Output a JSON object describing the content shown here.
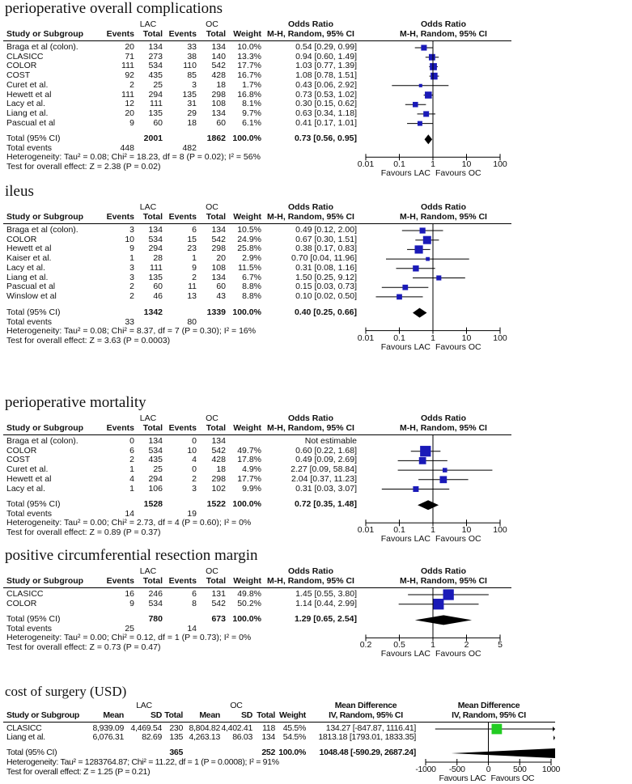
{
  "sections": [
    {
      "title": "perioperative overall complications",
      "measure": "Odds Ratio",
      "method": "M-H, Random, 95% CI",
      "scale": "log",
      "ticks": [
        "0.01",
        "0.1",
        "1",
        "10",
        "100"
      ],
      "favours": [
        "Favours LAC",
        "Favours OC"
      ],
      "cols": [
        "Study or Subgroup",
        "Events",
        "Total",
        "Events",
        "Total",
        "Weight"
      ],
      "groups": [
        "LAC",
        "OC"
      ],
      "studies": [
        {
          "name": "Braga et al (colon).",
          "e1": "20",
          "t1": "134",
          "e2": "33",
          "t2": "134",
          "w": "10.0%",
          "est": "0.54 [0.29, 0.99]",
          "v": [
            0.54,
            0.29,
            0.99
          ],
          "wv": 10.0
        },
        {
          "name": "CLASICC",
          "e1": "71",
          "t1": "273",
          "e2": "38",
          "t2": "140",
          "w": "13.3%",
          "est": "0.94 [0.60, 1.49]",
          "v": [
            0.94,
            0.6,
            1.49
          ],
          "wv": 13.3
        },
        {
          "name": "COLOR",
          "e1": "111",
          "t1": "534",
          "e2": "110",
          "t2": "542",
          "w": "17.7%",
          "est": "1.03 [0.77, 1.39]",
          "v": [
            1.03,
            0.77,
            1.39
          ],
          "wv": 17.7
        },
        {
          "name": "COST",
          "e1": "92",
          "t1": "435",
          "e2": "85",
          "t2": "428",
          "w": "16.7%",
          "est": "1.08 [0.78, 1.51]",
          "v": [
            1.08,
            0.78,
            1.51
          ],
          "wv": 16.7
        },
        {
          "name": "Curet et al.",
          "e1": "2",
          "t1": "25",
          "e2": "3",
          "t2": "18",
          "w": "1.7%",
          "est": "0.43 [0.06, 2.92]",
          "v": [
            0.43,
            0.06,
            2.92
          ],
          "wv": 1.7
        },
        {
          "name": "Hewett et al",
          "e1": "111",
          "t1": "294",
          "e2": "135",
          "t2": "298",
          "w": "16.8%",
          "est": "0.73 [0.53, 1.02]",
          "v": [
            0.73,
            0.53,
            1.02
          ],
          "wv": 16.8
        },
        {
          "name": "Lacy et al.",
          "e1": "12",
          "t1": "111",
          "e2": "31",
          "t2": "108",
          "w": "8.1%",
          "est": "0.30 [0.15, 0.62]",
          "v": [
            0.3,
            0.15,
            0.62
          ],
          "wv": 8.1
        },
        {
          "name": "Liang et al.",
          "e1": "20",
          "t1": "135",
          "e2": "29",
          "t2": "134",
          "w": "9.7%",
          "est": "0.63 [0.34, 1.18]",
          "v": [
            0.63,
            0.34,
            1.18
          ],
          "wv": 9.7
        },
        {
          "name": "Pascual et al",
          "e1": "9",
          "t1": "60",
          "e2": "18",
          "t2": "60",
          "w": "6.1%",
          "est": "0.41 [0.17, 1.01]",
          "v": [
            0.41,
            0.17,
            1.01
          ],
          "wv": 6.1
        }
      ],
      "total": {
        "name": "Total (95% CI)",
        "t1": "2001",
        "t2": "1862",
        "w": "100.0%",
        "est": "0.73 [0.56, 0.95]",
        "v": [
          0.73,
          0.56,
          0.95
        ]
      },
      "events": {
        "label": "Total events",
        "e1": "448",
        "e2": "482"
      },
      "heterogeneity": "Heterogeneity: Tau² = 0.08; Chi² = 18.23, df = 8 (P = 0.02); I² = 56%",
      "overall": "Test for overall effect: Z = 2.38 (P = 0.02)"
    },
    {
      "title": "ileus",
      "measure": "Odds Ratio",
      "method": "M-H, Random, 95% CI",
      "scale": "log",
      "ticks": [
        "0.01",
        "0.1",
        "1",
        "10",
        "100"
      ],
      "favours": [
        "Favours LAC",
        "Favours OC"
      ],
      "cols": [
        "Study or Subgroup",
        "Events",
        "Total",
        "Events",
        "Total",
        "Weight"
      ],
      "groups": [
        "LAC",
        "OC"
      ],
      "studies": [
        {
          "name": "Braga et al (colon).",
          "e1": "3",
          "t1": "134",
          "e2": "6",
          "t2": "134",
          "w": "10.5%",
          "est": "0.49 [0.12, 2.00]",
          "v": [
            0.49,
            0.12,
            2.0
          ],
          "wv": 10.5
        },
        {
          "name": "COLOR",
          "e1": "10",
          "t1": "534",
          "e2": "15",
          "t2": "542",
          "w": "24.9%",
          "est": "0.67 [0.30, 1.51]",
          "v": [
            0.67,
            0.3,
            1.51
          ],
          "wv": 24.9
        },
        {
          "name": "Hewett et al",
          "e1": "9",
          "t1": "294",
          "e2": "23",
          "t2": "298",
          "w": "25.8%",
          "est": "0.38 [0.17, 0.83]",
          "v": [
            0.38,
            0.17,
            0.83
          ],
          "wv": 25.8
        },
        {
          "name": "Kaiser et al.",
          "e1": "1",
          "t1": "28",
          "e2": "1",
          "t2": "20",
          "w": "2.9%",
          "est": "0.70 [0.04, 11.96]",
          "v": [
            0.7,
            0.04,
            11.96
          ],
          "wv": 2.9
        },
        {
          "name": "Lacy et al.",
          "e1": "3",
          "t1": "111",
          "e2": "9",
          "t2": "108",
          "w": "11.5%",
          "est": "0.31 [0.08, 1.16]",
          "v": [
            0.31,
            0.08,
            1.16
          ],
          "wv": 11.5
        },
        {
          "name": "Liang et al.",
          "e1": "3",
          "t1": "135",
          "e2": "2",
          "t2": "134",
          "w": "6.7%",
          "est": "1.50 [0.25, 9.12]",
          "v": [
            1.5,
            0.25,
            9.12
          ],
          "wv": 6.7
        },
        {
          "name": "Pascual et al",
          "e1": "2",
          "t1": "60",
          "e2": "11",
          "t2": "60",
          "w": "8.8%",
          "est": "0.15 [0.03, 0.73]",
          "v": [
            0.15,
            0.03,
            0.73
          ],
          "wv": 8.8
        },
        {
          "name": "Winslow et al",
          "e1": "2",
          "t1": "46",
          "e2": "13",
          "t2": "43",
          "w": "8.8%",
          "est": "0.10 [0.02, 0.50]",
          "v": [
            0.1,
            0.02,
            0.5
          ],
          "wv": 8.8
        }
      ],
      "total": {
        "name": "Total (95% CI)",
        "t1": "1342",
        "t2": "1339",
        "w": "100.0%",
        "est": "0.40 [0.25, 0.66]",
        "v": [
          0.4,
          0.25,
          0.66
        ]
      },
      "events": {
        "label": "Total events",
        "e1": "33",
        "e2": "80"
      },
      "heterogeneity": "Heterogeneity: Tau² = 0.08; Chi² = 8.37, df = 7 (P = 0.30); I² = 16%",
      "overall": "Test for overall effect: Z = 3.63 (P = 0.0003)"
    },
    {
      "title": "perioperative mortality",
      "measure": "Odds Ratio",
      "method": "M-H, Random, 95% CI",
      "scale": "log",
      "ticks": [
        "0.01",
        "0.1",
        "1",
        "10",
        "100"
      ],
      "favours": [
        "Favours LAC",
        "Favours OC"
      ],
      "cols": [
        "Study or Subgroup",
        "Events",
        "Total",
        "Events",
        "Total",
        "Weight"
      ],
      "groups": [
        "LAC",
        "OC"
      ],
      "studies": [
        {
          "name": "Braga et al (colon).",
          "e1": "0",
          "t1": "134",
          "e2": "0",
          "t2": "134",
          "w": "",
          "est": "Not estimable",
          "v": null,
          "wv": 0
        },
        {
          "name": "COLOR",
          "e1": "6",
          "t1": "534",
          "e2": "10",
          "t2": "542",
          "w": "49.7%",
          "est": "0.60 [0.22, 1.68]",
          "v": [
            0.6,
            0.22,
            1.68
          ],
          "wv": 49.7
        },
        {
          "name": "COST",
          "e1": "2",
          "t1": "435",
          "e2": "4",
          "t2": "428",
          "w": "17.8%",
          "est": "0.49 [0.09, 2.69]",
          "v": [
            0.49,
            0.09,
            2.69
          ],
          "wv": 17.8
        },
        {
          "name": "Curet et al.",
          "e1": "1",
          "t1": "25",
          "e2": "0",
          "t2": "18",
          "w": "4.9%",
          "est": "2.27 [0.09, 58.84]",
          "v": [
            2.27,
            0.09,
            58.84
          ],
          "wv": 4.9
        },
        {
          "name": "Hewett et al",
          "e1": "4",
          "t1": "294",
          "e2": "2",
          "t2": "298",
          "w": "17.7%",
          "est": "2.04 [0.37, 11.23]",
          "v": [
            2.04,
            0.37,
            11.23
          ],
          "wv": 17.7
        },
        {
          "name": "Lacy et al.",
          "e1": "1",
          "t1": "106",
          "e2": "3",
          "t2": "102",
          "w": "9.9%",
          "est": "0.31 [0.03, 3.07]",
          "v": [
            0.31,
            0.03,
            3.07
          ],
          "wv": 9.9
        }
      ],
      "total": {
        "name": "Total (95% CI)",
        "t1": "1528",
        "t2": "1522",
        "w": "100.0%",
        "est": "0.72 [0.35, 1.48]",
        "v": [
          0.72,
          0.35,
          1.48
        ]
      },
      "events": {
        "label": "Total events",
        "e1": "14",
        "e2": "19"
      },
      "heterogeneity": "Heterogeneity: Tau² = 0.00; Chi² = 2.73, df = 4 (P = 0.60); I² = 0%",
      "overall": "Test for overall effect: Z = 0.89 (P = 0.37)"
    },
    {
      "title": "positive circumferential resection margin",
      "measure": "Odds Ratio",
      "method": "M-H, Random, 95% CI",
      "scale": "log",
      "ticks": [
        "0.2",
        "0.5",
        "1",
        "2",
        "5"
      ],
      "favours": [
        "Favours LAC",
        "Favours OC"
      ],
      "cols": [
        "Study or Subgroup",
        "Events",
        "Total",
        "Events",
        "Total",
        "Weight"
      ],
      "groups": [
        "LAC",
        "OC"
      ],
      "studies": [
        {
          "name": "CLASICC",
          "e1": "16",
          "t1": "246",
          "e2": "6",
          "t2": "131",
          "w": "49.8%",
          "est": "1.45 [0.55, 3.80]",
          "v": [
            1.45,
            0.55,
            3.8
          ],
          "wv": 49.8
        },
        {
          "name": "COLOR",
          "e1": "9",
          "t1": "534",
          "e2": "8",
          "t2": "542",
          "w": "50.2%",
          "est": "1.14 [0.44, 2.99]",
          "v": [
            1.14,
            0.44,
            2.99
          ],
          "wv": 50.2
        }
      ],
      "total": {
        "name": "Total (95% CI)",
        "t1": "780",
        "t2": "673",
        "w": "100.0%",
        "est": "1.29 [0.65, 2.54]",
        "v": [
          1.29,
          0.65,
          2.54
        ]
      },
      "events": {
        "label": "Total events",
        "e1": "25",
        "e2": "14"
      },
      "heterogeneity": "Heterogeneity: Tau² = 0.00; Chi² = 0.12, df = 1 (P = 0.73); I² = 0%",
      "overall": "Test for overall effect: Z = 0.73 (P = 0.47)"
    },
    {
      "title": "cost of surgery (USD)",
      "measure": "Mean Difference",
      "method": "IV, Random, 95% CI",
      "scale": "linear",
      "ticks": [
        "-1000",
        "-500",
        "0",
        "500",
        "1000"
      ],
      "favours": [
        "Favours LAC",
        "Favours OC"
      ],
      "cols": [
        "Study or Subgroup",
        "Mean",
        "SD",
        "Total",
        "Mean",
        "SD",
        "Total",
        "Weight"
      ],
      "groups": [
        "LAC",
        "OC"
      ],
      "studies": [
        {
          "name": "CLASICC",
          "m1": "8,939.09",
          "s1": "4,469.54",
          "t1": "230",
          "m2": "8,804.82",
          "s2": "4,402.41",
          "t2": "118",
          "w": "45.5%",
          "est": "134.27 [-847.87, 1116.41]",
          "v": [
            134.27,
            -847.87,
            1116.41
          ],
          "wv": 45.5
        },
        {
          "name": "Liang et al.",
          "m1": "6,076.31",
          "s1": "82.69",
          "t1": "135",
          "m2": "4,263.13",
          "s2": "86.03",
          "t2": "134",
          "w": "54.5%",
          "est": "1813.18 [1793.01, 1833.35]",
          "v": [
            1813.18,
            1793.01,
            1833.35
          ],
          "wv": 54.5
        }
      ],
      "total": {
        "name": "Total (95% CI)",
        "t1": "365",
        "t2": "252",
        "w": "100.0%",
        "est": "1048.48 [-590.29, 2687.24]",
        "v": [
          1048.48,
          -590.29,
          2687.24
        ]
      },
      "heterogeneity": "Heterogeneity: Tau² = 1283764.87; Chi² = 11.22, df = 1 (P = 0.0008); I² = 91%",
      "overall": "Test for overall effect: Z = 1.25 (P = 0.21)"
    }
  ],
  "colors": {
    "marker": "#1a1ab8",
    "marker_md": "#22cc22",
    "line": "#000000"
  }
}
